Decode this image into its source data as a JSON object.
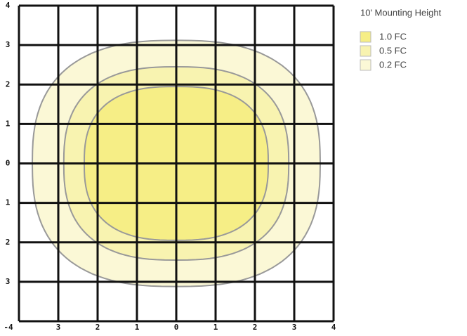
{
  "chart_data": {
    "type": "contour",
    "title": "10' Mounting Height",
    "xlim": [
      -4,
      4
    ],
    "ylim": [
      -4,
      4
    ],
    "xticks": [
      {
        "value": -4,
        "label": "-4"
      },
      {
        "value": -3,
        "label": "3"
      },
      {
        "value": -2,
        "label": "2"
      },
      {
        "value": -1,
        "label": "1"
      },
      0,
      1,
      2,
      3,
      4
    ],
    "yticks": [
      4,
      3,
      2,
      1,
      0,
      {
        "value": -1,
        "label": "1"
      },
      {
        "value": -2,
        "label": "2"
      },
      {
        "value": -3,
        "label": "3"
      },
      {
        "value": -4,
        "label": "4"
      }
    ],
    "grid": true,
    "series": [
      {
        "name": "0.2 FC",
        "color": "#fbf8d6",
        "rx": 3.66,
        "ry": 3.12
      },
      {
        "name": "0.5 FC",
        "color": "#f8f3b0",
        "rx": 2.86,
        "ry": 2.45
      },
      {
        "name": "1.0 FC",
        "color": "#f6ee86",
        "rx": 2.34,
        "ry": 1.95
      }
    ],
    "legend_order": [
      "1.0 FC",
      "0.5 FC",
      "0.2 FC"
    ]
  }
}
